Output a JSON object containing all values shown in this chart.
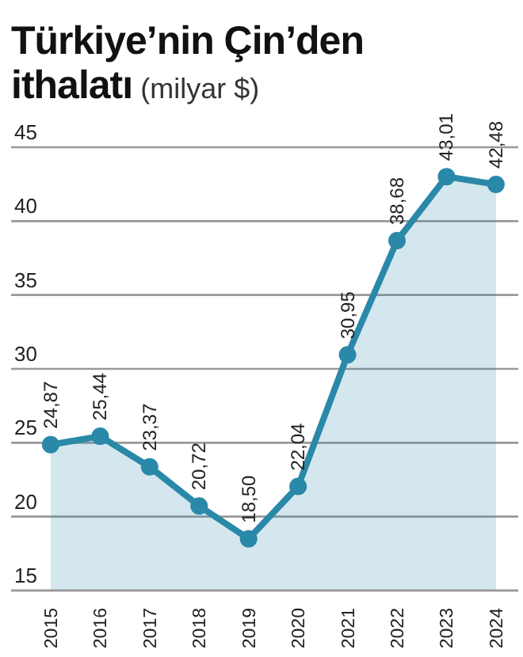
{
  "chart_data": {
    "type": "area",
    "title": "Türkiye’nin Çin’den ithalatı",
    "subtitle": "(milyar $)",
    "categories": [
      "2015",
      "2016",
      "2017",
      "2018",
      "2019",
      "2020",
      "2021",
      "2022",
      "2023",
      "2024"
    ],
    "values": [
      24.87,
      25.44,
      23.37,
      20.72,
      18.5,
      22.04,
      30.95,
      38.68,
      43.01,
      42.48
    ],
    "value_labels": [
      "24,87",
      "25,44",
      "23,37",
      "20,72",
      "18,50",
      "22,04",
      "30,95",
      "38,68",
      "43,01",
      "42,48"
    ],
    "color": "#2a88a8",
    "ylim": [
      15,
      45
    ],
    "yticks": [
      15,
      20,
      25,
      30,
      35,
      40,
      45
    ],
    "grid": "y",
    "marker": "circle",
    "line_style": "solid"
  }
}
